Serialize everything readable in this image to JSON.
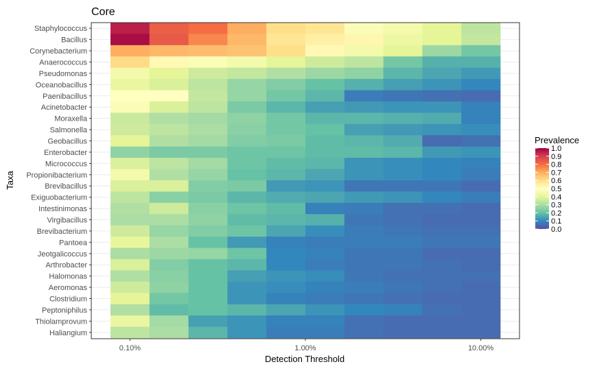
{
  "chart_data": {
    "type": "heatmap",
    "title": "Core",
    "xlabel": "Detection Threshold",
    "ylabel": "Taxa",
    "x_scale": "log",
    "x_tick_labels": [
      "0.10%",
      "1.00%",
      "10.00%"
    ],
    "x_tick_values": [
      0.001,
      0.01,
      0.1
    ],
    "detection_thresholds": [
      0.001,
      0.00167,
      0.00278,
      0.00464,
      0.00774,
      0.0129,
      0.0215,
      0.0359,
      0.0599,
      0.1
    ],
    "legend_title": "Prevalence",
    "legend_breaks": [
      "1.0",
      "0.9",
      "0.8",
      "0.7",
      "0.6",
      "0.5",
      "0.4",
      "0.3",
      "0.2",
      "0.1",
      "0.0"
    ],
    "legend_position": "right",
    "color_scale": "Spectral",
    "grid": true,
    "taxa": [
      "Staphylococcus",
      "Bacillus",
      "Corynebacterium",
      "Anaerococcus",
      "Pseudomonas",
      "Oceanobacillus",
      "Paenibacillus",
      "Acinetobacter",
      "Moraxella",
      "Salmonella",
      "Geobacillus",
      "Enterobacter",
      "Micrococcus",
      "Propionibacterium",
      "Brevibacillus",
      "Exiguobacterium",
      "Intestinimonas",
      "Virgibacillus",
      "Brevibacterium",
      "Pantoea",
      "Jeotgalicoccus",
      "Arthrobacter",
      "Halomonas",
      "Aeromonas",
      "Clostridium",
      "Peptoniphilus",
      "Thiolamprovum",
      "Haliangium"
    ],
    "values": [
      [
        0.95,
        0.83,
        0.8,
        0.7,
        0.6,
        0.58,
        0.48,
        0.45,
        0.4,
        0.33
      ],
      [
        0.98,
        0.84,
        0.76,
        0.68,
        0.58,
        0.55,
        0.53,
        0.43,
        0.4,
        0.34
      ],
      [
        0.7,
        0.68,
        0.67,
        0.66,
        0.6,
        0.52,
        0.45,
        0.4,
        0.28,
        0.22
      ],
      [
        0.61,
        0.52,
        0.48,
        0.45,
        0.4,
        0.36,
        0.33,
        0.22,
        0.17,
        0.17
      ],
      [
        0.45,
        0.4,
        0.36,
        0.34,
        0.31,
        0.28,
        0.26,
        0.18,
        0.15,
        0.13
      ],
      [
        0.42,
        0.38,
        0.33,
        0.27,
        0.24,
        0.2,
        0.17,
        0.14,
        0.12,
        0.1
      ],
      [
        0.5,
        0.5,
        0.34,
        0.27,
        0.22,
        0.18,
        0.08,
        0.07,
        0.06,
        0.05
      ],
      [
        0.48,
        0.38,
        0.33,
        0.23,
        0.18,
        0.14,
        0.13,
        0.12,
        0.12,
        0.09
      ],
      [
        0.35,
        0.31,
        0.29,
        0.26,
        0.22,
        0.18,
        0.18,
        0.17,
        0.16,
        0.09
      ],
      [
        0.36,
        0.33,
        0.3,
        0.25,
        0.22,
        0.2,
        0.14,
        0.13,
        0.12,
        0.11
      ],
      [
        0.4,
        0.31,
        0.29,
        0.24,
        0.23,
        0.19,
        0.18,
        0.16,
        0.05,
        0.06
      ],
      [
        0.26,
        0.23,
        0.23,
        0.21,
        0.21,
        0.19,
        0.19,
        0.18,
        0.13,
        0.12
      ],
      [
        0.38,
        0.33,
        0.29,
        0.21,
        0.19,
        0.18,
        0.12,
        0.11,
        0.1,
        0.09
      ],
      [
        0.45,
        0.31,
        0.27,
        0.2,
        0.18,
        0.15,
        0.12,
        0.11,
        0.1,
        0.08
      ],
      [
        0.38,
        0.38,
        0.24,
        0.23,
        0.13,
        0.12,
        0.07,
        0.07,
        0.07,
        0.05
      ],
      [
        0.33,
        0.25,
        0.23,
        0.18,
        0.16,
        0.15,
        0.13,
        0.12,
        0.1,
        0.08
      ],
      [
        0.31,
        0.36,
        0.25,
        0.21,
        0.19,
        0.09,
        0.08,
        0.06,
        0.06,
        0.05
      ],
      [
        0.3,
        0.3,
        0.26,
        0.19,
        0.18,
        0.17,
        0.07,
        0.06,
        0.05,
        0.05
      ],
      [
        0.36,
        0.27,
        0.24,
        0.21,
        0.15,
        0.11,
        0.08,
        0.07,
        0.06,
        0.06
      ],
      [
        0.41,
        0.3,
        0.2,
        0.13,
        0.09,
        0.08,
        0.08,
        0.08,
        0.07,
        0.07
      ],
      [
        0.3,
        0.28,
        0.27,
        0.21,
        0.1,
        0.09,
        0.07,
        0.07,
        0.05,
        0.05
      ],
      [
        0.38,
        0.24,
        0.2,
        0.18,
        0.1,
        0.08,
        0.07,
        0.07,
        0.06,
        0.05
      ],
      [
        0.31,
        0.25,
        0.2,
        0.14,
        0.12,
        0.11,
        0.07,
        0.06,
        0.06,
        0.06
      ],
      [
        0.36,
        0.26,
        0.2,
        0.12,
        0.11,
        0.09,
        0.08,
        0.07,
        0.06,
        0.05
      ],
      [
        0.4,
        0.22,
        0.2,
        0.12,
        0.09,
        0.08,
        0.07,
        0.06,
        0.05,
        0.05
      ],
      [
        0.31,
        0.19,
        0.2,
        0.18,
        0.15,
        0.12,
        0.1,
        0.09,
        0.06,
        0.05
      ],
      [
        0.42,
        0.29,
        0.14,
        0.12,
        0.09,
        0.09,
        0.06,
        0.05,
        0.05,
        0.05
      ],
      [
        0.33,
        0.3,
        0.18,
        0.12,
        0.08,
        0.08,
        0.06,
        0.05,
        0.05,
        0.05
      ]
    ]
  }
}
